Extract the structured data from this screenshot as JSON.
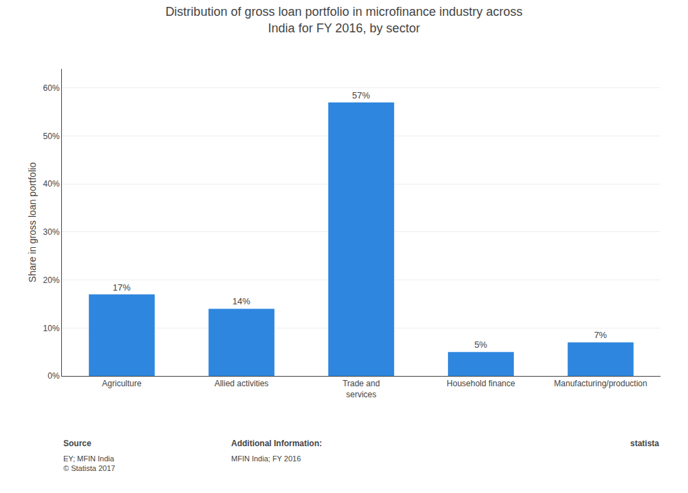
{
  "chart_data": {
    "type": "bar",
    "title": "Distribution of gross loan portfolio in microfinance industry across\nIndia for FY 2016, by sector",
    "categories": [
      "Agriculture",
      "Allied activities",
      "Trade and\nservices",
      "Household finance",
      "Manufacturing/production"
    ],
    "values": [
      17,
      14,
      57,
      5,
      7
    ],
    "value_labels": [
      "17%",
      "14%",
      "57%",
      "5%",
      "7%"
    ],
    "data_labels": true,
    "color": "#2e86de",
    "y_label": "Share in gross loan portfolio",
    "ylim": [
      0,
      64
    ],
    "yticks": [
      {
        "value": 0,
        "label": "0%"
      },
      {
        "value": 10,
        "label": "10%"
      },
      {
        "value": 20,
        "label": "20%"
      },
      {
        "value": 30,
        "label": "30%"
      },
      {
        "value": 40,
        "label": "40%"
      },
      {
        "value": 50,
        "label": "50%"
      },
      {
        "value": 60,
        "label": "60%"
      }
    ],
    "grid": true,
    "annotations": [
      "Source",
      "EY; MFIN India\n© Statista 2017",
      "Additional Information:",
      "MFIN India; FY 2016",
      "statista"
    ]
  }
}
